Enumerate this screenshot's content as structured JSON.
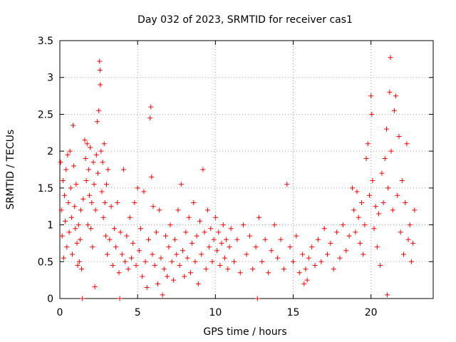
{
  "chart_data": {
    "type": "scatter",
    "title": "Day 032 of 2023, SRMTID for receiver cas1",
    "xlabel": "GPS time / hours",
    "ylabel": "SRMTID / TECUs",
    "xlim": [
      0,
      24
    ],
    "ylim": [
      0,
      3.5
    ],
    "xticks": [
      0,
      5,
      10,
      15,
      20
    ],
    "xtick_labels": [
      "0",
      "5",
      "10",
      "15",
      "20"
    ],
    "yticks": [
      0,
      0.5,
      1,
      1.5,
      2,
      2.5,
      3,
      3.5
    ],
    "ytick_labels": [
      "0",
      "0.5",
      "1",
      "1.5",
      "2",
      "2.5",
      "3",
      "3.5"
    ],
    "grid": true,
    "marker": "plus",
    "color": "#ff0000",
    "series": [
      {
        "name": "SRMTID",
        "points": [
          [
            0.05,
            1.85
          ],
          [
            0.1,
            1.2
          ],
          [
            0.15,
            0.85
          ],
          [
            0.2,
            1.6
          ],
          [
            0.25,
            0.55
          ],
          [
            0.3,
            1.4
          ],
          [
            0.35,
            1.05
          ],
          [
            0.4,
            1.75
          ],
          [
            0.45,
            0.7
          ],
          [
            0.5,
            1.95
          ],
          [
            0.55,
            1.3
          ],
          [
            0.6,
            0.9
          ],
          [
            0.65,
            2.0
          ],
          [
            0.7,
            1.5
          ],
          [
            0.75,
            1.1
          ],
          [
            0.8,
            0.6
          ],
          [
            0.85,
            2.35
          ],
          [
            0.9,
            1.8
          ],
          [
            0.95,
            1.25
          ],
          [
            1.0,
            0.95
          ],
          [
            1.05,
            1.55
          ],
          [
            1.1,
            0.75
          ],
          [
            1.15,
            0.45
          ],
          [
            1.2,
            1.0
          ],
          [
            1.25,
            0.5
          ],
          [
            1.3,
            0.8
          ],
          [
            1.35,
            1.2
          ],
          [
            1.4,
            0.4
          ],
          [
            1.45,
            0.0
          ],
          [
            1.5,
            1.35
          ],
          [
            1.6,
            2.15
          ],
          [
            1.65,
            1.9
          ],
          [
            1.7,
            1.6
          ],
          [
            1.75,
            2.1
          ],
          [
            1.8,
            1.0
          ],
          [
            1.85,
            1.75
          ],
          [
            1.9,
            1.4
          ],
          [
            1.95,
            2.05
          ],
          [
            2.0,
            0.95
          ],
          [
            2.05,
            1.3
          ],
          [
            2.1,
            0.7
          ],
          [
            2.15,
            1.85
          ],
          [
            2.2,
            1.55
          ],
          [
            2.25,
            0.16
          ],
          [
            2.3,
            1.2
          ],
          [
            2.35,
            1.95
          ],
          [
            2.4,
            2.4
          ],
          [
            2.45,
            1.7
          ],
          [
            2.5,
            2.55
          ],
          [
            2.55,
            3.22
          ],
          [
            2.58,
            3.1
          ],
          [
            2.6,
            2.9
          ],
          [
            2.65,
            2.0
          ],
          [
            2.7,
            1.45
          ],
          [
            2.75,
            1.85
          ],
          [
            2.8,
            1.1
          ],
          [
            2.85,
            2.1
          ],
          [
            2.9,
            1.3
          ],
          [
            2.95,
            0.85
          ],
          [
            3.0,
            1.55
          ],
          [
            3.05,
            0.6
          ],
          [
            3.1,
            1.75
          ],
          [
            3.2,
            0.8
          ],
          [
            3.3,
            1.25
          ],
          [
            3.4,
            0.45
          ],
          [
            3.5,
            0.95
          ],
          [
            3.6,
            0.7
          ],
          [
            3.7,
            1.3
          ],
          [
            3.8,
            0.35
          ],
          [
            3.85,
            0.0
          ],
          [
            3.9,
            0.9
          ],
          [
            4.0,
            0.6
          ],
          [
            4.1,
            1.75
          ],
          [
            4.2,
            0.5
          ],
          [
            4.3,
            0.85
          ],
          [
            4.4,
            0.4
          ],
          [
            4.5,
            1.1
          ],
          [
            4.6,
            0.55
          ],
          [
            4.7,
            0.75
          ],
          [
            4.8,
            1.3
          ],
          [
            4.9,
            0.45
          ],
          [
            5.0,
            1.5
          ],
          [
            5.1,
            0.65
          ],
          [
            5.2,
            0.95
          ],
          [
            5.3,
            0.3
          ],
          [
            5.4,
            1.45
          ],
          [
            5.5,
            0.5
          ],
          [
            5.6,
            0.15
          ],
          [
            5.7,
            0.8
          ],
          [
            5.8,
            2.45
          ],
          [
            5.85,
            2.6
          ],
          [
            5.9,
            1.65
          ],
          [
            5.95,
            0.6
          ],
          [
            6.0,
            1.25
          ],
          [
            6.1,
            0.45
          ],
          [
            6.2,
            0.9
          ],
          [
            6.3,
            0.2
          ],
          [
            6.4,
            1.2
          ],
          [
            6.5,
            0.55
          ],
          [
            6.6,
            0.05
          ],
          [
            6.7,
            0.4
          ],
          [
            6.8,
            0.85
          ],
          [
            6.9,
            0.3
          ],
          [
            7.0,
            0.7
          ],
          [
            7.1,
            1.0
          ],
          [
            7.2,
            0.5
          ],
          [
            7.3,
            0.25
          ],
          [
            7.4,
            0.8
          ],
          [
            7.5,
            0.6
          ],
          [
            7.6,
            1.2
          ],
          [
            7.7,
            0.45
          ],
          [
            7.8,
            1.55
          ],
          [
            7.9,
            0.65
          ],
          [
            8.0,
            0.3
          ],
          [
            8.1,
            0.9
          ],
          [
            8.2,
            0.55
          ],
          [
            8.3,
            1.1
          ],
          [
            8.4,
            0.35
          ],
          [
            8.5,
            0.75
          ],
          [
            8.6,
            1.3
          ],
          [
            8.7,
            0.5
          ],
          [
            8.8,
            0.85
          ],
          [
            8.9,
            0.2
          ],
          [
            9.0,
            1.05
          ],
          [
            9.1,
            0.6
          ],
          [
            9.2,
            1.75
          ],
          [
            9.3,
            0.9
          ],
          [
            9.4,
            0.4
          ],
          [
            9.5,
            1.2
          ],
          [
            9.6,
            0.7
          ],
          [
            9.7,
            0.95
          ],
          [
            9.8,
            0.5
          ],
          [
            9.9,
            0.8
          ],
          [
            10.0,
            1.1
          ],
          [
            10.1,
            0.65
          ],
          [
            10.2,
            0.9
          ],
          [
            10.3,
            0.45
          ],
          [
            10.4,
            0.75
          ],
          [
            10.5,
            1.0
          ],
          [
            10.6,
            0.55
          ],
          [
            10.7,
            0.8
          ],
          [
            10.8,
            0.4
          ],
          [
            10.9,
            0.7
          ],
          [
            11.0,
            0.95
          ],
          [
            11.2,
            0.5
          ],
          [
            11.4,
            0.8
          ],
          [
            11.6,
            0.35
          ],
          [
            11.8,
            1.0
          ],
          [
            12.0,
            0.6
          ],
          [
            12.2,
            0.85
          ],
          [
            12.4,
            0.4
          ],
          [
            12.6,
            0.7
          ],
          [
            12.7,
            0.0
          ],
          [
            12.8,
            1.1
          ],
          [
            13.0,
            0.5
          ],
          [
            13.2,
            0.8
          ],
          [
            13.4,
            0.35
          ],
          [
            13.6,
            0.65
          ],
          [
            13.8,
            1.0
          ],
          [
            14.0,
            0.55
          ],
          [
            14.2,
            0.8
          ],
          [
            14.4,
            0.4
          ],
          [
            14.6,
            1.55
          ],
          [
            14.8,
            0.7
          ],
          [
            15.0,
            0.5
          ],
          [
            15.2,
            0.85
          ],
          [
            15.4,
            0.35
          ],
          [
            15.6,
            0.6
          ],
          [
            15.7,
            0.2
          ],
          [
            15.8,
            0.4
          ],
          [
            15.9,
            0.25
          ],
          [
            16.0,
            0.55
          ],
          [
            16.2,
            0.7
          ],
          [
            16.4,
            0.45
          ],
          [
            16.6,
            0.8
          ],
          [
            16.8,
            0.5
          ],
          [
            17.0,
            0.95
          ],
          [
            17.2,
            0.6
          ],
          [
            17.4,
            0.75
          ],
          [
            17.6,
            0.4
          ],
          [
            17.8,
            0.9
          ],
          [
            18.0,
            0.55
          ],
          [
            18.2,
            1.0
          ],
          [
            18.4,
            0.65
          ],
          [
            18.6,
            0.85
          ],
          [
            18.8,
            1.5
          ],
          [
            18.9,
            1.2
          ],
          [
            19.0,
            0.9
          ],
          [
            19.1,
            1.45
          ],
          [
            19.2,
            1.1
          ],
          [
            19.3,
            0.75
          ],
          [
            19.4,
            1.3
          ],
          [
            19.5,
            0.6
          ],
          [
            19.6,
            1.0
          ],
          [
            19.7,
            1.9
          ],
          [
            19.8,
            2.1
          ],
          [
            19.9,
            1.4
          ],
          [
            20.0,
            2.75
          ],
          [
            20.05,
            2.5
          ],
          [
            20.1,
            1.6
          ],
          [
            20.2,
            0.95
          ],
          [
            20.3,
            1.25
          ],
          [
            20.4,
            0.7
          ],
          [
            20.5,
            1.15
          ],
          [
            20.6,
            0.45
          ],
          [
            20.7,
            1.7
          ],
          [
            20.8,
            1.3
          ],
          [
            20.9,
            1.9
          ],
          [
            21.0,
            2.3
          ],
          [
            21.1,
            1.5
          ],
          [
            21.2,
            2.8
          ],
          [
            21.25,
            3.27
          ],
          [
            21.3,
            2.0
          ],
          [
            21.4,
            1.2
          ],
          [
            21.5,
            2.55
          ],
          [
            21.6,
            2.75
          ],
          [
            21.7,
            1.4
          ],
          [
            21.8,
            2.2
          ],
          [
            21.9,
            0.9
          ],
          [
            22.0,
            1.6
          ],
          [
            22.1,
            0.6
          ],
          [
            22.2,
            1.3
          ],
          [
            22.3,
            2.1
          ],
          [
            22.4,
            0.8
          ],
          [
            22.5,
            1.0
          ],
          [
            22.6,
            0.5
          ],
          [
            22.7,
            0.75
          ],
          [
            22.8,
            1.2
          ],
          [
            21.05,
            0.05
          ]
        ]
      }
    ]
  }
}
